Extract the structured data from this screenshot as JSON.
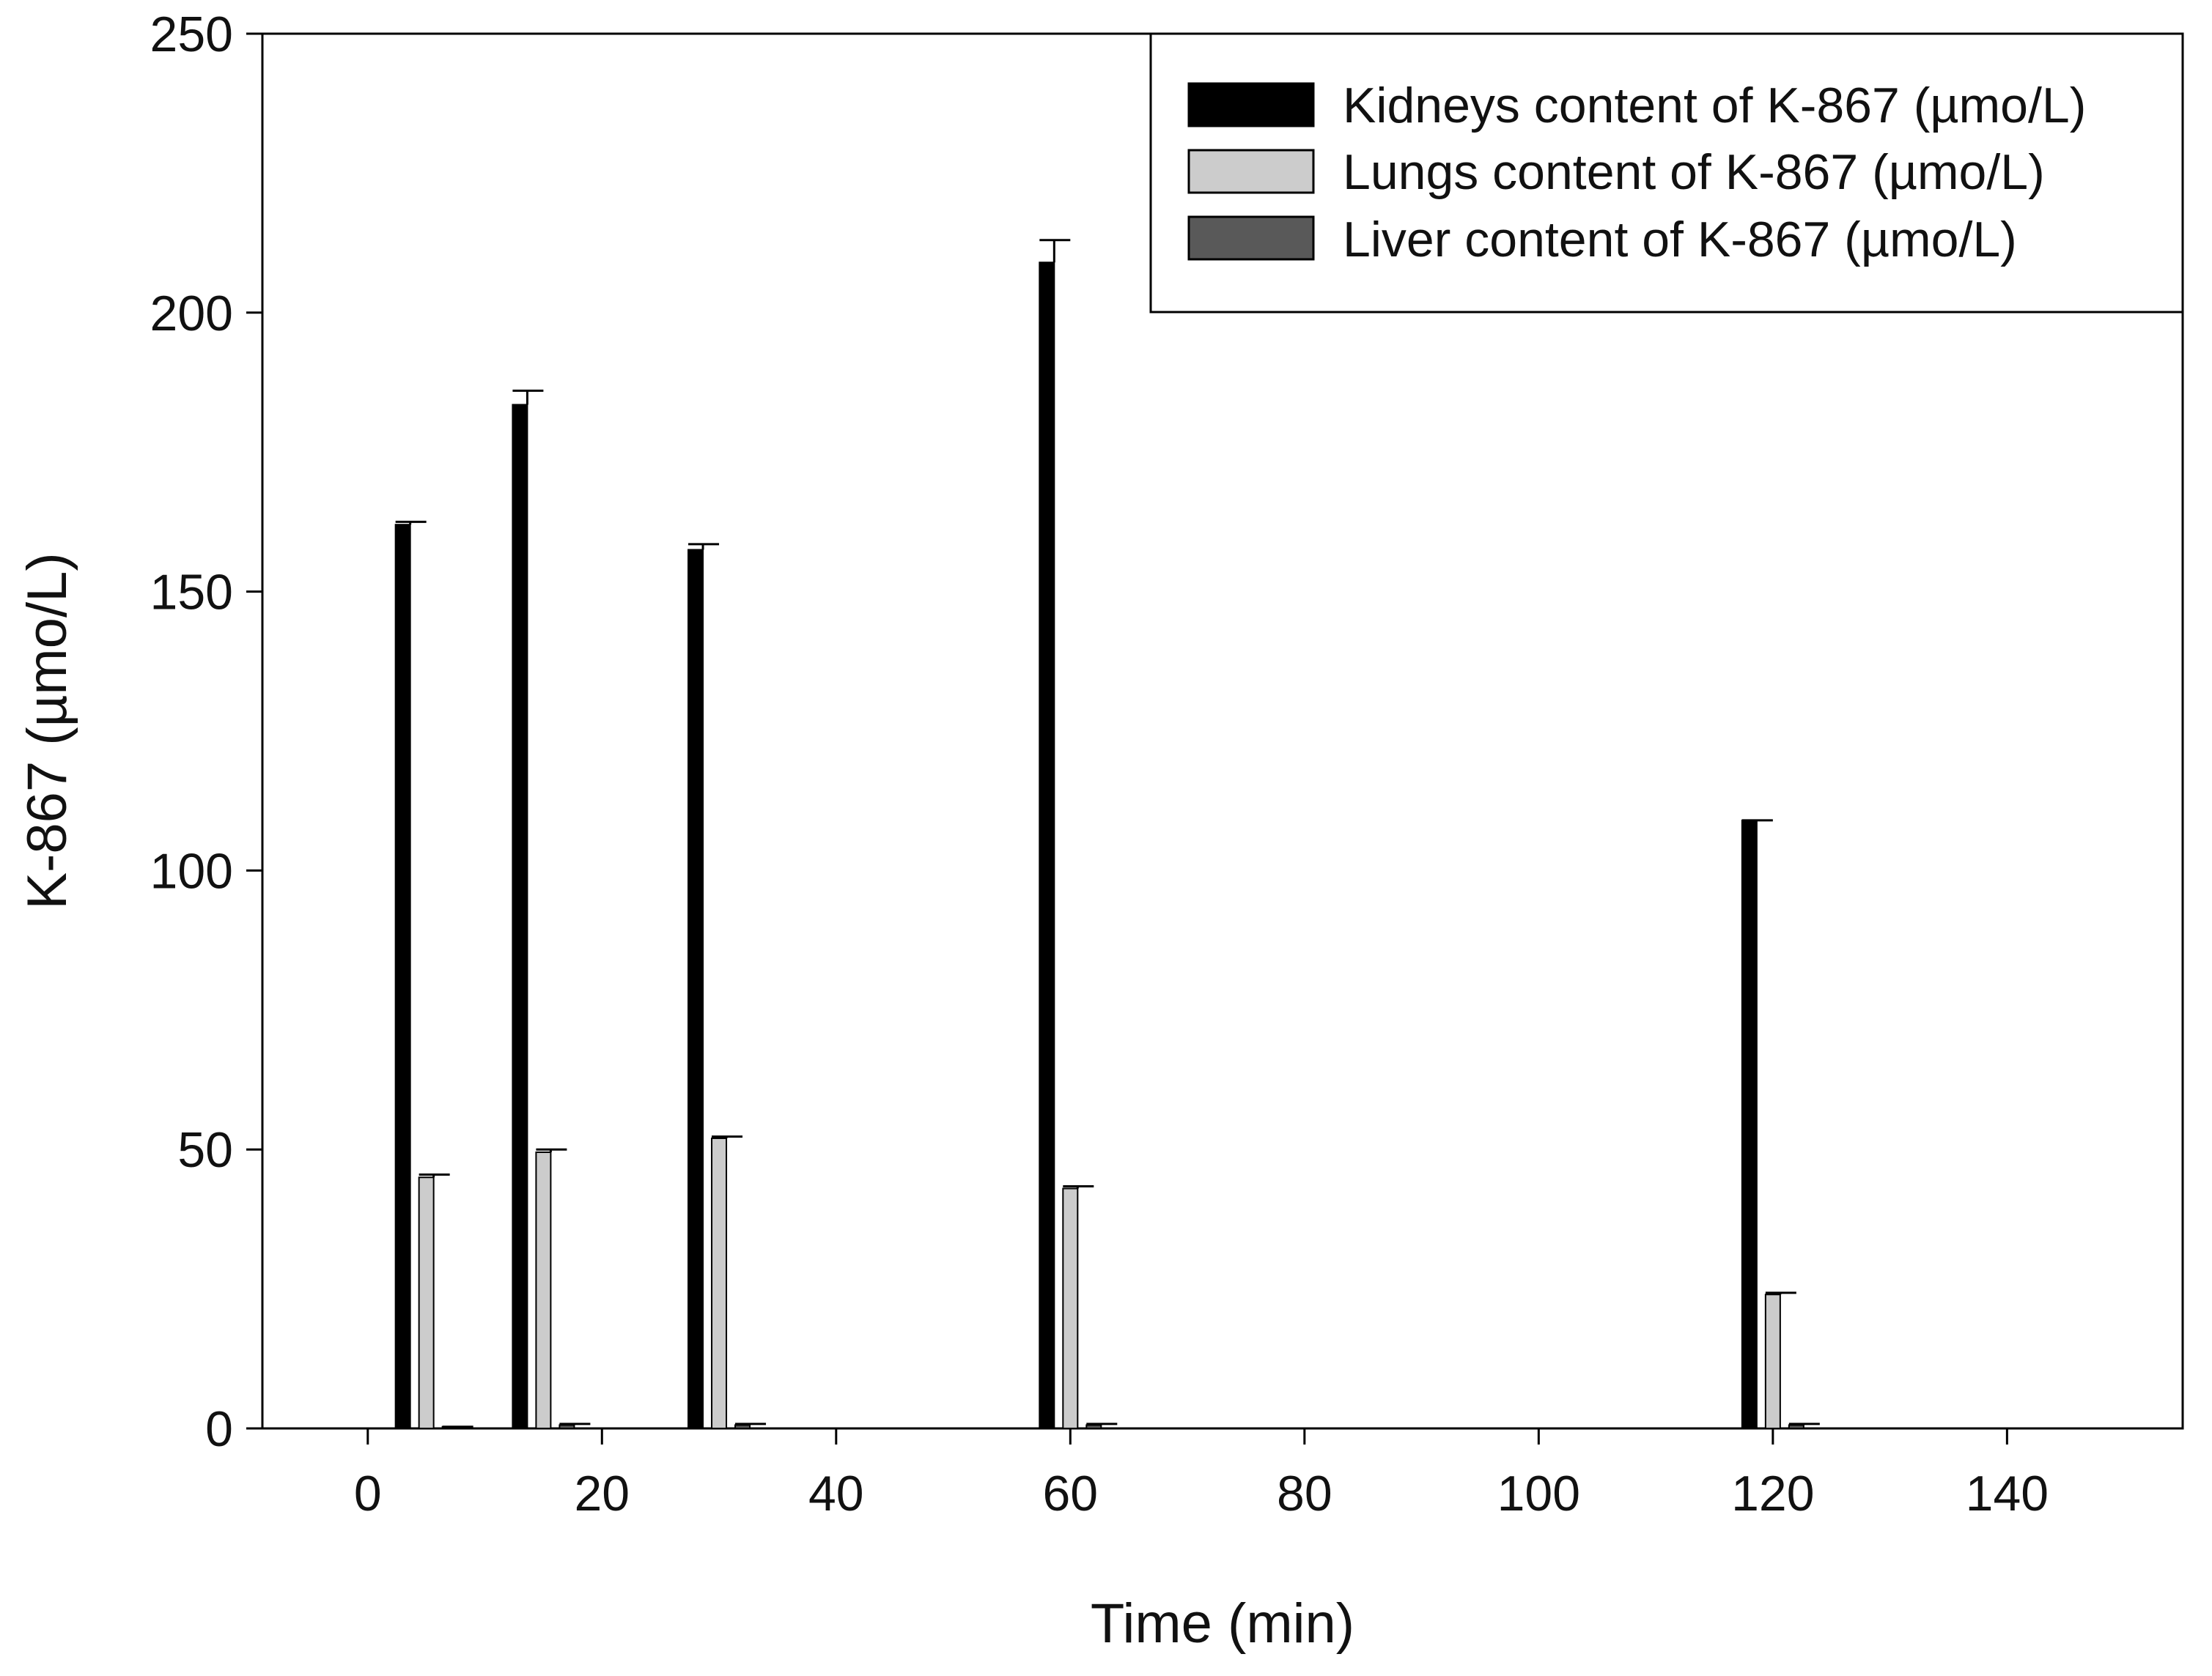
{
  "chart_data": {
    "type": "bar",
    "xlabel": "Time (min)",
    "ylabel": "K-867 (µmo/L)",
    "xlim": [
      -9,
      155
    ],
    "ylim": [
      0,
      250
    ],
    "x_ticks": [
      0,
      20,
      40,
      60,
      80,
      100,
      120,
      140
    ],
    "y_ticks": [
      0,
      50,
      100,
      150,
      200,
      250
    ],
    "x": [
      5,
      15,
      30,
      60,
      120
    ],
    "series": [
      {
        "name": "Kidneys content of K-867 (µmo/L)",
        "color": "#000000",
        "values": [
          162,
          183.5,
          157.5,
          209,
          109
        ],
        "errors": [
          0.5,
          2.5,
          1,
          4,
          0
        ]
      },
      {
        "name": "Lungs content of K-867 (µmo/L)",
        "color": "#cccccc",
        "values": [
          45,
          49.5,
          52,
          43,
          24
        ],
        "errors": [
          0.5,
          0.5,
          0.3,
          0.4,
          0.3
        ]
      },
      {
        "name": "Liver content of K-867 (µmo/L)",
        "color": "#595959",
        "values": [
          0.3,
          0.6,
          0.6,
          0.6,
          0.6
        ],
        "errors": [
          0,
          0.2,
          0.2,
          0.2,
          0.2
        ]
      }
    ],
    "legend_position": "top-right",
    "grid": false
  }
}
